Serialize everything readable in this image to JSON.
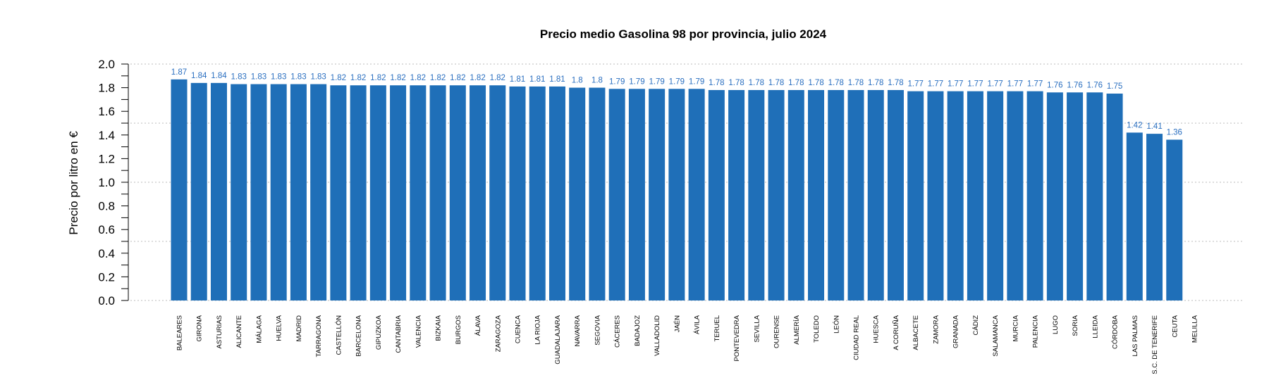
{
  "chart_data": {
    "type": "bar",
    "title": "Precio medio Gasolina 98 por provincia, julio 2024",
    "xlabel": "",
    "ylabel": "Precio por litro en €",
    "ylim": [
      0,
      2.0
    ],
    "yticks": [
      "0.0",
      "0.2",
      "0.4",
      "0.6",
      "0.8",
      "1.0",
      "1.2",
      "1.4",
      "1.6",
      "1.8",
      "2.0"
    ],
    "grid": {
      "horizontal": true,
      "style": "dotted",
      "values": [
        0,
        0.5,
        1.0,
        1.5,
        2.0
      ]
    },
    "bar_color": "#1f6fb8",
    "label_color": "#2a6fc0",
    "categories": [
      "BALEARES",
      "GIRONA",
      "ASTURIAS",
      "ALICANTE",
      "MÁLAGA",
      "HUELVA",
      "MADRID",
      "TARRAGONA",
      "CASTELLÓN",
      "BARCELONA",
      "GIPUZKOA",
      "CANTABRIA",
      "VALENCIA",
      "BIZKAIA",
      "BURGOS",
      "ÁLAVA",
      "ZARAGOZA",
      "CUENCA",
      "LA RIOJA",
      "GUADALAJARA",
      "NAVARRA",
      "SEGOVIA",
      "CÁCERES",
      "BADAJOZ",
      "VALLADOLID",
      "JAÉN",
      "ÁVILA",
      "TERUEL",
      "PONTEVEDRA",
      "SEVILLA",
      "OURENSE",
      "ALMERÍA",
      "TOLEDO",
      "LEÓN",
      "CIUDAD REAL",
      "HUESCA",
      "A CORUÑA",
      "ALBACETE",
      "ZAMORA",
      "GRANADA",
      "CÁDIZ",
      "SALAMANCA",
      "MURCIA",
      "PALENCIA",
      "LUGO",
      "SORIA",
      "LLEIDA",
      "CÓRDOBA",
      "LAS PALMAS",
      "S.C. DE TENERIFE",
      "CEUTA",
      "MELILLA"
    ],
    "values": [
      1.87,
      1.84,
      1.84,
      1.83,
      1.83,
      1.83,
      1.83,
      1.83,
      1.82,
      1.82,
      1.82,
      1.82,
      1.82,
      1.82,
      1.82,
      1.82,
      1.82,
      1.81,
      1.81,
      1.81,
      1.8,
      1.8,
      1.79,
      1.79,
      1.79,
      1.79,
      1.79,
      1.78,
      1.78,
      1.78,
      1.78,
      1.78,
      1.78,
      1.78,
      1.78,
      1.78,
      1.78,
      1.77,
      1.77,
      1.77,
      1.77,
      1.77,
      1.77,
      1.77,
      1.76,
      1.76,
      1.76,
      1.75,
      1.42,
      1.41,
      1.36,
      null
    ],
    "value_labels": [
      "1.87",
      "1.84",
      "1.84",
      "1.83",
      "1.83",
      "1.83",
      "1.83",
      "1.83",
      "1.82",
      "1.82",
      "1.82",
      "1.82",
      "1.82",
      "1.82",
      "1.82",
      "1.82",
      "1.82",
      "1.81",
      "1.81",
      "1.81",
      "1.8",
      "1.8",
      "1.79",
      "1.79",
      "1.79",
      "1.79",
      "1.79",
      "1.78",
      "1.78",
      "1.78",
      "1.78",
      "1.78",
      "1.78",
      "1.78",
      "1.78",
      "1.78",
      "1.78",
      "1.77",
      "1.77",
      "1.77",
      "1.77",
      "1.77",
      "1.77",
      "1.77",
      "1.76",
      "1.76",
      "1.76",
      "1.75",
      "1.42",
      "1.41",
      "1.36",
      ""
    ]
  }
}
